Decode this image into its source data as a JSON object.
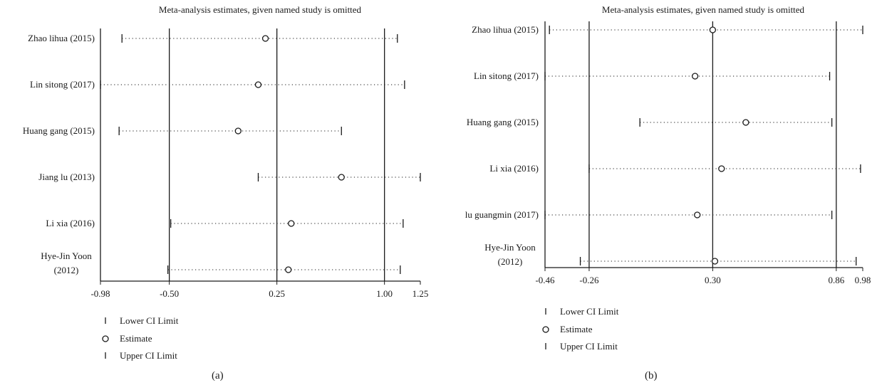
{
  "chart_data": [
    {
      "panel_label": "(a)",
      "type": "scatter",
      "title": "Meta-analysis estimates, given named study is omitted",
      "xlim": [
        -0.98,
        1.25
      ],
      "x_ticks": [
        "-0.98",
        "-0.50",
        "0.25",
        "1.00",
        "1.25"
      ],
      "x_tick_values": [
        -0.98,
        -0.5,
        0.25,
        1.0,
        1.25
      ],
      "reference_lines": [
        -0.5,
        0.25,
        1.0
      ],
      "grid": false,
      "studies": [
        {
          "label": "Zhao lihua (2015)",
          "lower": -0.83,
          "estimate": 0.17,
          "upper": 1.09
        },
        {
          "label": "Lin sitong (2017)",
          "lower": -0.98,
          "estimate": 0.12,
          "upper": 1.14
        },
        {
          "label": "Huang gang (2015)",
          "lower": -0.85,
          "estimate": -0.02,
          "upper": 0.7
        },
        {
          "label": "Jiang lu (2013)",
          "lower": 0.12,
          "estimate": 0.7,
          "upper": 1.25
        },
        {
          "label": "Li xia (2016)",
          "lower": -0.49,
          "estimate": 0.35,
          "upper": 1.13
        },
        {
          "label": "Hye-Jin Yoon (2012)",
          "label_lines": [
            "Hye-Jin Yoon",
            "(2012)"
          ],
          "lower": -0.51,
          "estimate": 0.33,
          "upper": 1.11
        }
      ],
      "legend": [
        "Lower CI Limit",
        "Estimate",
        "Upper CI Limit"
      ]
    },
    {
      "panel_label": "(b)",
      "type": "scatter",
      "title": "Meta-analysis estimates, given named study is omitted",
      "xlim": [
        -0.46,
        0.98
      ],
      "x_ticks": [
        "-0.46",
        "-0.26",
        "0.30",
        "0.86",
        "0.98"
      ],
      "x_tick_values": [
        -0.46,
        -0.26,
        0.3,
        0.86,
        0.98
      ],
      "reference_lines": [
        -0.26,
        0.3,
        0.86
      ],
      "grid": false,
      "studies": [
        {
          "label": "Zhao lihua (2015)",
          "lower": -0.44,
          "estimate": 0.3,
          "upper": 0.98
        },
        {
          "label": "Lin sitong (2017)",
          "lower": -0.46,
          "estimate": 0.22,
          "upper": 0.83
        },
        {
          "label": "Huang gang (2015)",
          "lower": -0.03,
          "estimate": 0.45,
          "upper": 0.84
        },
        {
          "label": "Li xia (2016)",
          "lower": -0.26,
          "estimate": 0.34,
          "upper": 0.97
        },
        {
          "label": "lu guangmin (2017)",
          "lower": -0.46,
          "estimate": 0.23,
          "upper": 0.84
        },
        {
          "label": "Hye-Jin Yoon (2012)",
          "label_lines": [
            "Hye-Jin Yoon",
            "(2012)"
          ],
          "lower": -0.3,
          "estimate": 0.31,
          "upper": 0.95
        }
      ],
      "legend": [
        "Lower CI Limit",
        "Estimate",
        "Upper CI Limit"
      ]
    }
  ]
}
